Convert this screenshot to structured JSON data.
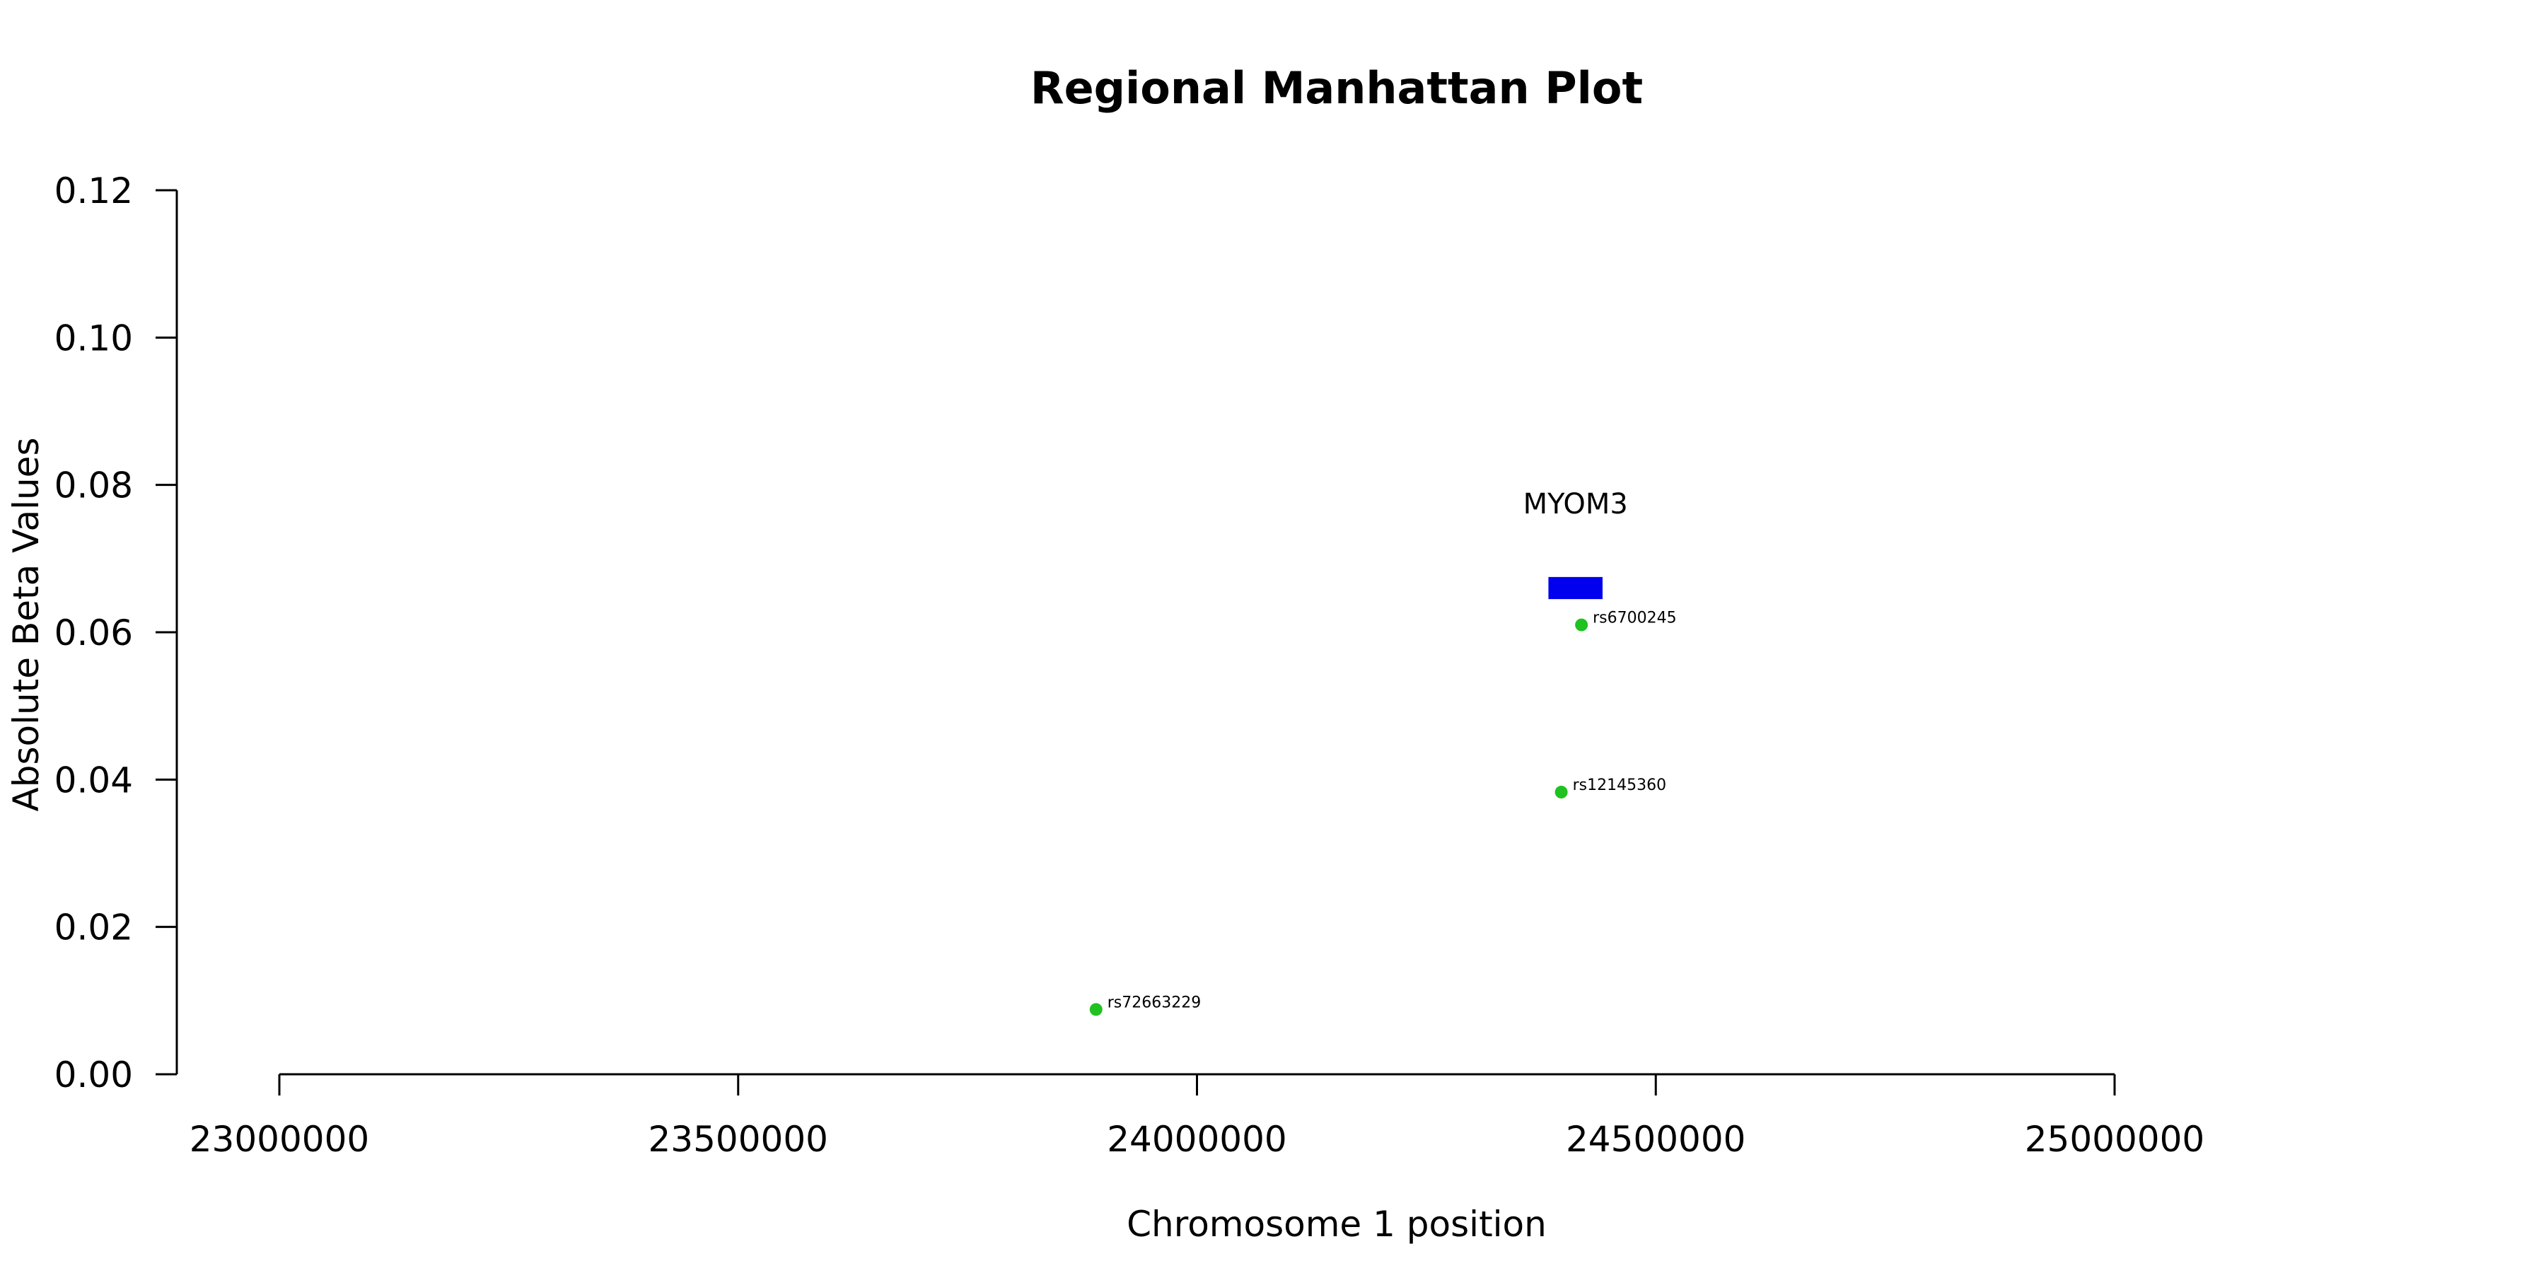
{
  "chart_data": {
    "type": "scatter",
    "title": "Regional Manhattan Plot",
    "xlabel": "Chromosome 1 position",
    "ylabel": "Absolute Beta Values",
    "xlim": [
      23000000,
      25000000
    ],
    "ylim": [
      0,
      0.12
    ],
    "x_ticks": [
      23000000,
      23500000,
      24000000,
      24500000,
      25000000
    ],
    "x_tick_labels": [
      "23000000",
      "23500000",
      "24000000",
      "24500000",
      "25000000"
    ],
    "y_ticks": [
      0,
      0.02,
      0.04,
      0.06,
      0.08,
      0.1,
      0.12
    ],
    "y_tick_labels": [
      "0.00",
      "0.02",
      "0.04",
      "0.06",
      "0.08",
      "0.10",
      "0.12"
    ],
    "grid": false,
    "points": [
      {
        "label": "rs72663229",
        "x": 23890000,
        "y": 0.0088
      },
      {
        "label": "rs12145360",
        "x": 24397000,
        "y": 0.0383
      },
      {
        "label": "rs6700245",
        "x": 24419000,
        "y": 0.061
      }
    ],
    "point_color": "#1fc21f",
    "gene": {
      "name": "MYOM3",
      "start": 24383000,
      "end": 24442000,
      "y_low": 0.0645,
      "y_high": 0.0675,
      "color": "#0000ee"
    }
  }
}
